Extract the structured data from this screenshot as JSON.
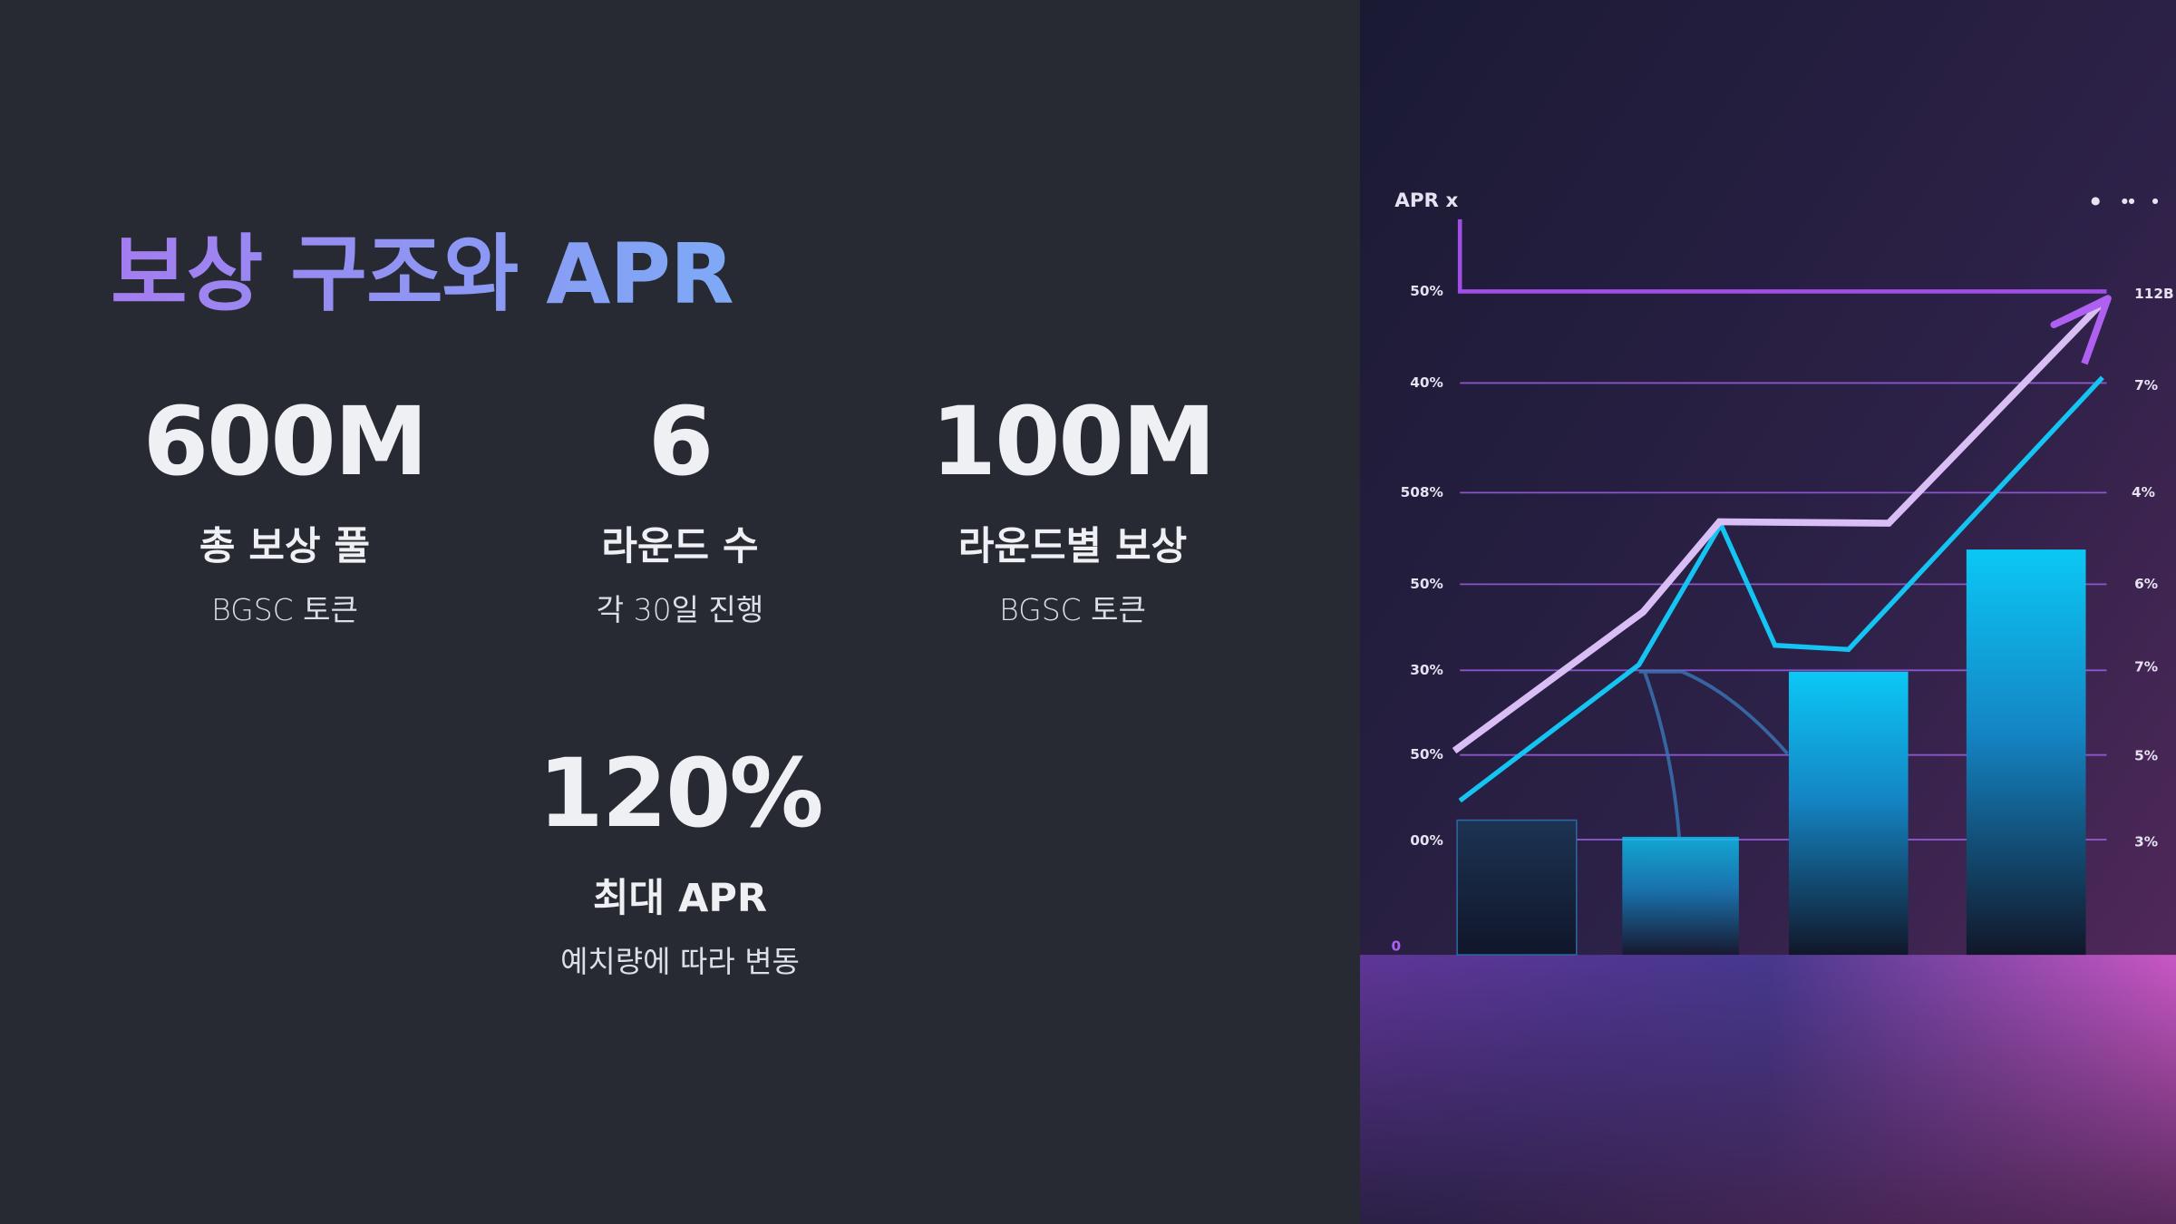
{
  "title": "보상 구조와 APR",
  "stats": [
    {
      "value": "600M",
      "label": "총 보상 풀",
      "note": "BGSC 토큰"
    },
    {
      "value": "6",
      "label": "라운드 수",
      "note": "각 30일 진행"
    },
    {
      "value": "100M",
      "label": "라운드별 보상",
      "note": "BGSC 토큰"
    },
    {
      "value": "120%",
      "label": "최대 APR",
      "note": "예치량에 따라 변동"
    }
  ],
  "illustration": {
    "title": "APR x",
    "left_labels": [
      "50%",
      "40%",
      "508%",
      "50%",
      "30%",
      "50%",
      "00%"
    ],
    "right_labels": [
      "112B",
      "7%",
      "4%",
      "6%",
      "7%",
      "5%",
      "3%"
    ],
    "zero_label": "0"
  }
}
